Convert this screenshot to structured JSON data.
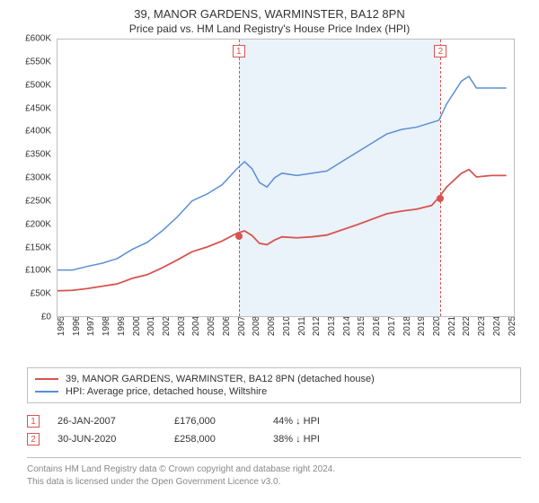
{
  "title": "39, MANOR GARDENS, WARMINSTER, BA12 8PN",
  "subtitle": "Price paid vs. HM Land Registry's House Price Index (HPI)",
  "chart": {
    "type": "line",
    "background_color": "#ffffff",
    "shade_color": "#eaf2fa",
    "plot_border_color": "#bfbfbf",
    "y_axis": {
      "min": 0,
      "max": 600000,
      "step": 50000,
      "labels": [
        "£0",
        "£50K",
        "£100K",
        "£150K",
        "£200K",
        "£250K",
        "£300K",
        "£350K",
        "£400K",
        "£450K",
        "£500K",
        "£550K",
        "£600K"
      ],
      "label_fontsize": 10,
      "label_color": "#333333"
    },
    "x_axis": {
      "min": 1995,
      "max": 2025.5,
      "labels": [
        "1995",
        "1996",
        "1997",
        "1998",
        "1999",
        "2000",
        "2001",
        "2002",
        "2003",
        "2004",
        "2005",
        "2006",
        "2007",
        "2008",
        "2009",
        "2010",
        "2011",
        "2012",
        "2013",
        "2014",
        "2015",
        "2016",
        "2017",
        "2018",
        "2019",
        "2020",
        "2021",
        "2022",
        "2023",
        "2024",
        "2025"
      ],
      "label_fontsize": 10,
      "label_color": "#333333"
    },
    "shaded_region": {
      "x_start": 2007.07,
      "x_end": 2020.5
    },
    "markers": [
      {
        "num": "1",
        "x": 2007.07,
        "border_color": "#d9534f"
      },
      {
        "num": "2",
        "x": 2020.5,
        "border_color": "#d9534f"
      }
    ],
    "series": [
      {
        "name": "hpi",
        "label": "HPI: Average price, detached house, Wiltshire",
        "color": "#5b8fd6",
        "line_width": 1.5,
        "data": [
          [
            1995,
            100000
          ],
          [
            1996,
            100000
          ],
          [
            1997,
            108000
          ],
          [
            1998,
            115000
          ],
          [
            1999,
            125000
          ],
          [
            2000,
            145000
          ],
          [
            2001,
            160000
          ],
          [
            2002,
            185000
          ],
          [
            2003,
            215000
          ],
          [
            2004,
            250000
          ],
          [
            2005,
            265000
          ],
          [
            2006,
            285000
          ],
          [
            2007,
            320000
          ],
          [
            2007.5,
            335000
          ],
          [
            2008,
            320000
          ],
          [
            2008.5,
            290000
          ],
          [
            2009,
            280000
          ],
          [
            2009.5,
            300000
          ],
          [
            2010,
            310000
          ],
          [
            2011,
            305000
          ],
          [
            2012,
            310000
          ],
          [
            2013,
            315000
          ],
          [
            2014,
            335000
          ],
          [
            2015,
            355000
          ],
          [
            2016,
            375000
          ],
          [
            2017,
            395000
          ],
          [
            2018,
            405000
          ],
          [
            2019,
            410000
          ],
          [
            2020,
            420000
          ],
          [
            2020.5,
            425000
          ],
          [
            2021,
            460000
          ],
          [
            2022,
            510000
          ],
          [
            2022.5,
            520000
          ],
          [
            2023,
            495000
          ],
          [
            2024,
            495000
          ],
          [
            2025,
            495000
          ]
        ]
      },
      {
        "name": "price",
        "label": "39, MANOR GARDENS, WARMINSTER, BA12 8PN (detached house)",
        "color": "#d9534f",
        "line_width": 1.8,
        "data": [
          [
            1995,
            55000
          ],
          [
            1996,
            56000
          ],
          [
            1997,
            60000
          ],
          [
            1998,
            65000
          ],
          [
            1999,
            70000
          ],
          [
            2000,
            82000
          ],
          [
            2001,
            90000
          ],
          [
            2002,
            105000
          ],
          [
            2003,
            122000
          ],
          [
            2004,
            140000
          ],
          [
            2005,
            150000
          ],
          [
            2006,
            163000
          ],
          [
            2007,
            180000
          ],
          [
            2007.5,
            185000
          ],
          [
            2008,
            175000
          ],
          [
            2008.5,
            158000
          ],
          [
            2009,
            155000
          ],
          [
            2009.5,
            165000
          ],
          [
            2010,
            172000
          ],
          [
            2011,
            170000
          ],
          [
            2012,
            172000
          ],
          [
            2013,
            176000
          ],
          [
            2014,
            187000
          ],
          [
            2015,
            198000
          ],
          [
            2016,
            210000
          ],
          [
            2017,
            222000
          ],
          [
            2018,
            228000
          ],
          [
            2019,
            232000
          ],
          [
            2020,
            240000
          ],
          [
            2020.5,
            258000
          ],
          [
            2021,
            280000
          ],
          [
            2022,
            310000
          ],
          [
            2022.5,
            318000
          ],
          [
            2023,
            302000
          ],
          [
            2024,
            305000
          ],
          [
            2025,
            305000
          ]
        ],
        "points": [
          {
            "x": 2007.07,
            "y": 176000
          },
          {
            "x": 2020.5,
            "y": 258000
          }
        ]
      }
    ]
  },
  "legend": {
    "border_color": "#bfbfbf",
    "items": [
      {
        "color": "#d9534f",
        "label": "39, MANOR GARDENS, WARMINSTER, BA12 8PN (detached house)"
      },
      {
        "color": "#5b8fd6",
        "label": "HPI: Average price, detached house, Wiltshire"
      }
    ]
  },
  "events": [
    {
      "num": "1",
      "border_color": "#d9534f",
      "date": "26-JAN-2007",
      "price": "£176,000",
      "diff": "44% ↓ HPI"
    },
    {
      "num": "2",
      "border_color": "#d9534f",
      "date": "30-JUN-2020",
      "price": "£258,000",
      "diff": "38% ↓ HPI"
    }
  ],
  "footer": {
    "line1": "Contains HM Land Registry data © Crown copyright and database right 2024.",
    "line2": "This data is licensed under the Open Government Licence v3.0.",
    "color": "#888888"
  }
}
